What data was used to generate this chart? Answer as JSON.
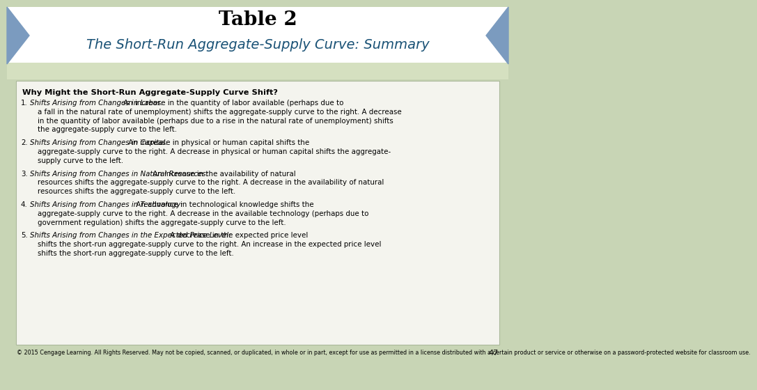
{
  "title_line1": "Table 2",
  "title_line2": "The Short-Run Aggregate-Supply Curve: Summary",
  "title_color": "#1a5276",
  "bg_color_outer": "#c8d5b5",
  "bg_color_strip": "#d5e0c0",
  "bg_color_box": "#f4f4ee",
  "box_border_color": "#aab89a",
  "header_text": "Why Might the Short-Run Aggregate-Supply Curve Shift?",
  "footer_text": "© 2015 Cengage Learning. All Rights Reserved. May not be copied, scanned, or duplicated, in whole or in part, except for use as permitted in a license distributed with a certain product or service or otherwise on a password-protected website for classroom use.",
  "page_number": "47",
  "arrow_color": "#7b9bbf",
  "items": [
    {
      "number": "1.",
      "italic_part": "Shifts Arising from Changes in Labor:",
      "normal_part": " An increase in the quantity of labor available (perhaps due to a fall in the natural rate of unemployment) shifts the aggregate-supply curve to the right. A decrease in the quantity of labor available (perhaps due to a rise in the natural rate of unemployment) shifts the aggregate-supply curve to the left."
    },
    {
      "number": "2.",
      "italic_part": "Shifts Arising from Changes in Capital:",
      "normal_part": " An increase in physical or human capital shifts the aggregate-supply curve to the right. A decrease in physical or human capital shifts the aggregate-supply curve to the left."
    },
    {
      "number": "3.",
      "italic_part": "Shifts Arising from Changes in Natural Resources:",
      "normal_part": " An increase in the availability of natural resources shifts the aggregate-supply curve to the right. A decrease in the availability of natural resources shifts the aggregate-supply curve to the left."
    },
    {
      "number": "4.",
      "italic_part": "Shifts Arising from Changes in Technology:",
      "normal_part": " An advance in technological knowledge shifts the aggregate-supply curve to the right. A decrease in the available technology (perhaps due to government regulation) shifts the aggregate-supply curve to the left."
    },
    {
      "number": "5.",
      "italic_part": "Shifts Arising from Changes in the Expected Price Level:",
      "normal_part": " A decrease in the expected price level shifts the short-run aggregate-supply curve to the right. An increase in the expected price level shifts the short-run aggregate-supply curve to the left."
    }
  ]
}
